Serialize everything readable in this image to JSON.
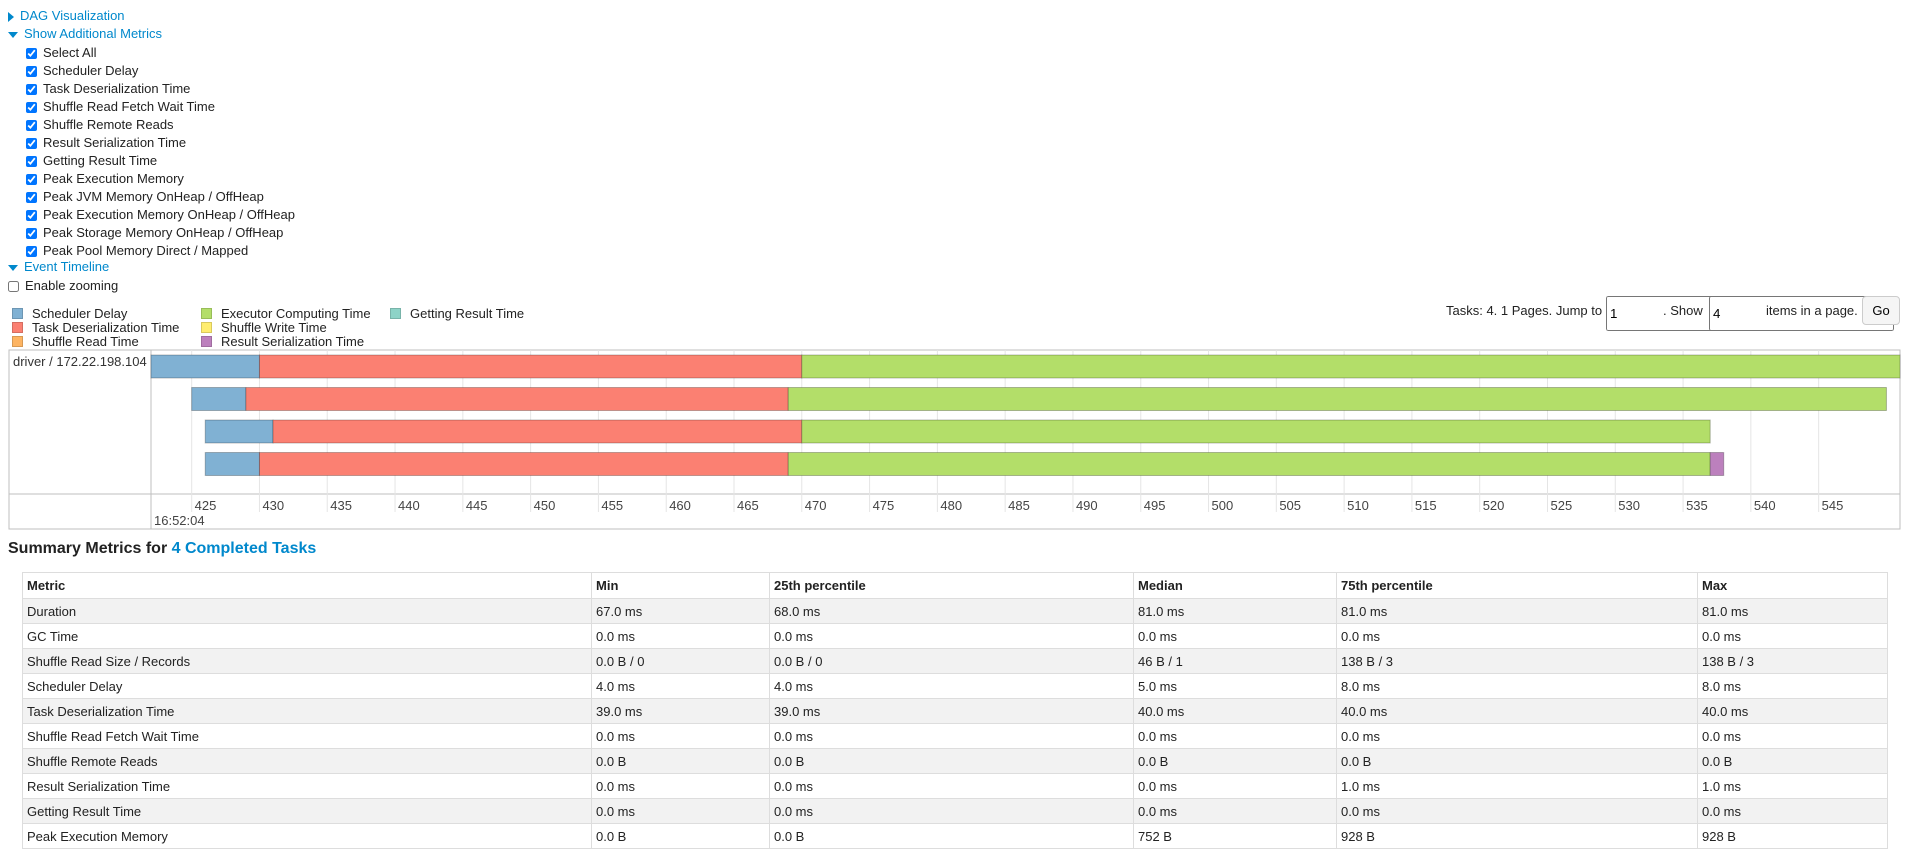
{
  "nav": {
    "dag": "DAG Visualization",
    "metrics": "Show Additional Metrics",
    "metric_options": [
      "Select All",
      "Scheduler Delay",
      "Task Deserialization Time",
      "Shuffle Read Fetch Wait Time",
      "Shuffle Remote Reads",
      "Result Serialization Time",
      "Getting Result Time",
      "Peak Execution Memory",
      "Peak JVM Memory OnHeap / OffHeap",
      "Peak Execution Memory OnHeap / OffHeap",
      "Peak Storage Memory OnHeap / OffHeap",
      "Peak Pool Memory Direct / Mapped"
    ],
    "timeline": "Event Timeline",
    "zoom": "Enable zooming"
  },
  "pagination": {
    "prefix": "Tasks: 4. 1 Pages. Jump to",
    "page": "1",
    "show": ". Show",
    "size": "4",
    "suffix": "items in a page.",
    "button": "Go"
  },
  "chart_data": {
    "type": "timeline",
    "executor": "driver / 172.22.198.104",
    "time_label": "16:52:04",
    "xlim": [
      422,
      551
    ],
    "xticks": [
      425,
      430,
      435,
      440,
      445,
      450,
      455,
      460,
      465,
      470,
      475,
      480,
      485,
      490,
      495,
      500,
      505,
      510,
      515,
      520,
      525,
      530,
      535,
      540,
      545
    ],
    "starts": [
      422,
      425,
      426,
      426
    ],
    "series": [
      {
        "name": "Scheduler Delay",
        "color": "#80b1d3",
        "values": [
          8,
          4,
          5,
          4
        ]
      },
      {
        "name": "Task Deserialization Time",
        "color": "#fb8072",
        "values": [
          40,
          40,
          39,
          39
        ]
      },
      {
        "name": "Shuffle Read Time",
        "color": "#fdb462",
        "values": [
          0,
          0,
          0,
          0
        ]
      },
      {
        "name": "Executor Computing Time",
        "color": "#b3de69",
        "values": [
          81,
          81,
          67,
          68
        ]
      },
      {
        "name": "Shuffle Write Time",
        "color": "#ffed6f",
        "values": [
          0,
          0,
          0,
          0
        ]
      },
      {
        "name": "Result Serialization Time",
        "color": "#bc80bd",
        "values": [
          0,
          0,
          0,
          1
        ]
      },
      {
        "name": "Getting Result Time",
        "color": "#8dd3c7",
        "values": [
          0,
          0,
          0,
          0
        ]
      }
    ]
  },
  "summary": {
    "title": "Summary Metrics for",
    "link": "4 Completed Tasks",
    "header": [
      "Metric",
      "Min",
      "25th percentile",
      "Median",
      "75th percentile",
      "Max"
    ],
    "rows": [
      [
        "Duration",
        "67.0 ms",
        "68.0 ms",
        "81.0 ms",
        "81.0 ms",
        "81.0 ms"
      ],
      [
        "GC Time",
        "0.0 ms",
        "0.0 ms",
        "0.0 ms",
        "0.0 ms",
        "0.0 ms"
      ],
      [
        "Shuffle Read Size / Records",
        "0.0 B / 0",
        "0.0 B / 0",
        "46 B / 1",
        "138 B / 3",
        "138 B / 3"
      ],
      [
        "Scheduler Delay",
        "4.0 ms",
        "4.0 ms",
        "5.0 ms",
        "8.0 ms",
        "8.0 ms"
      ],
      [
        "Task Deserialization Time",
        "39.0 ms",
        "39.0 ms",
        "40.0 ms",
        "40.0 ms",
        "40.0 ms"
      ],
      [
        "Shuffle Read Fetch Wait Time",
        "0.0 ms",
        "0.0 ms",
        "0.0 ms",
        "0.0 ms",
        "0.0 ms"
      ],
      [
        "Shuffle Remote Reads",
        "0.0 B",
        "0.0 B",
        "0.0 B",
        "0.0 B",
        "0.0 B"
      ],
      [
        "Result Serialization Time",
        "0.0 ms",
        "0.0 ms",
        "0.0 ms",
        "1.0 ms",
        "1.0 ms"
      ],
      [
        "Getting Result Time",
        "0.0 ms",
        "0.0 ms",
        "0.0 ms",
        "0.0 ms",
        "0.0 ms"
      ],
      [
        "Peak Execution Memory",
        "0.0 B",
        "0.0 B",
        "752 B",
        "928 B",
        "928 B"
      ]
    ]
  }
}
